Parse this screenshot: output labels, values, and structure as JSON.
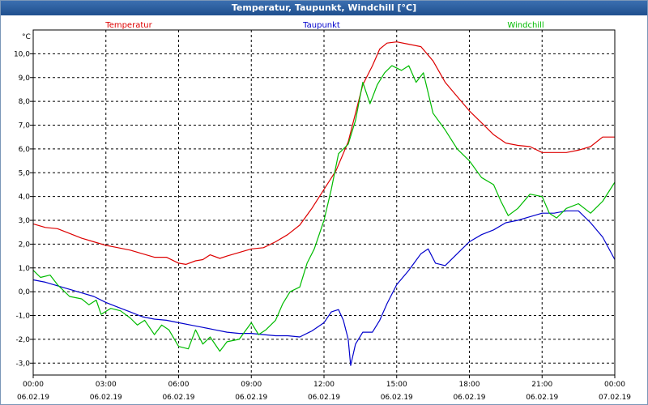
{
  "window": {
    "title": "Temperatur, Taupunkt, Windchill [°C]"
  },
  "chart_data": {
    "type": "line",
    "ylabel": "°C",
    "ylim": [
      -3.5,
      11.0
    ],
    "y_ticks": [
      "10,0",
      "9,0",
      "8,0",
      "7,0",
      "6,0",
      "5,0",
      "4,0",
      "3,0",
      "2,0",
      "1,0",
      "0,0",
      "-1,0",
      "-2,0",
      "-3,0"
    ],
    "y_tick_values": [
      10,
      9,
      8,
      7,
      6,
      5,
      4,
      3,
      2,
      1,
      0,
      -1,
      -2,
      -3
    ],
    "x_range": [
      0,
      24
    ],
    "x_ticks": [
      {
        "time": "00:00",
        "date": "06.02.19",
        "value": 0
      },
      {
        "time": "03:00",
        "date": "06.02.19",
        "value": 3
      },
      {
        "time": "06:00",
        "date": "06.02.19",
        "value": 6
      },
      {
        "time": "09:00",
        "date": "06.02.19",
        "value": 9
      },
      {
        "time": "12:00",
        "date": "06.02.19",
        "value": 12
      },
      {
        "time": "15:00",
        "date": "06.02.19",
        "value": 15
      },
      {
        "time": "18:00",
        "date": "06.02.19",
        "value": 18
      },
      {
        "time": "21:00",
        "date": "06.02.19",
        "value": 21
      },
      {
        "time": "00:00",
        "date": "07.02.19",
        "value": 24
      }
    ],
    "grid": true,
    "legend_placement": "top",
    "series": [
      {
        "name": "Temperatur",
        "color": "#dd0000",
        "points": [
          [
            0,
            2.85
          ],
          [
            0.5,
            2.7
          ],
          [
            1,
            2.65
          ],
          [
            1.5,
            2.45
          ],
          [
            2,
            2.25
          ],
          [
            2.5,
            2.1
          ],
          [
            3,
            1.95
          ],
          [
            3.5,
            1.85
          ],
          [
            4,
            1.75
          ],
          [
            4.5,
            1.6
          ],
          [
            5,
            1.45
          ],
          [
            5.5,
            1.45
          ],
          [
            6,
            1.2
          ],
          [
            6.3,
            1.15
          ],
          [
            6.7,
            1.3
          ],
          [
            7,
            1.35
          ],
          [
            7.3,
            1.55
          ],
          [
            7.7,
            1.4
          ],
          [
            8,
            1.5
          ],
          [
            8.5,
            1.65
          ],
          [
            9,
            1.8
          ],
          [
            9.5,
            1.85
          ],
          [
            10,
            2.1
          ],
          [
            10.5,
            2.4
          ],
          [
            11,
            2.8
          ],
          [
            11.5,
            3.5
          ],
          [
            12,
            4.3
          ],
          [
            12.5,
            5.1
          ],
          [
            13,
            6.3
          ],
          [
            13.3,
            7.5
          ],
          [
            13.6,
            8.7
          ],
          [
            14,
            9.5
          ],
          [
            14.3,
            10.2
          ],
          [
            14.6,
            10.45
          ],
          [
            15,
            10.5
          ],
          [
            15.5,
            10.4
          ],
          [
            16,
            10.3
          ],
          [
            16.5,
            9.7
          ],
          [
            17,
            8.8
          ],
          [
            17.5,
            8.2
          ],
          [
            18,
            7.6
          ],
          [
            18.5,
            7.1
          ],
          [
            19,
            6.6
          ],
          [
            19.5,
            6.25
          ],
          [
            20,
            6.15
          ],
          [
            20.5,
            6.1
          ],
          [
            21,
            5.85
          ],
          [
            21.5,
            5.85
          ],
          [
            22,
            5.85
          ],
          [
            22.5,
            5.95
          ],
          [
            23,
            6.1
          ],
          [
            23.5,
            6.5
          ],
          [
            24,
            6.5
          ]
        ]
      },
      {
        "name": "Taupunkt",
        "color": "#0000cc",
        "points": [
          [
            0,
            0.5
          ],
          [
            0.5,
            0.4
          ],
          [
            1,
            0.25
          ],
          [
            1.5,
            0.1
          ],
          [
            2,
            -0.05
          ],
          [
            2.5,
            -0.2
          ],
          [
            3,
            -0.45
          ],
          [
            3.5,
            -0.65
          ],
          [
            4,
            -0.85
          ],
          [
            4.5,
            -1.05
          ],
          [
            5,
            -1.15
          ],
          [
            5.5,
            -1.2
          ],
          [
            6,
            -1.3
          ],
          [
            6.5,
            -1.4
          ],
          [
            7,
            -1.5
          ],
          [
            7.5,
            -1.6
          ],
          [
            8,
            -1.7
          ],
          [
            8.5,
            -1.75
          ],
          [
            9,
            -1.75
          ],
          [
            9.5,
            -1.8
          ],
          [
            10,
            -1.85
          ],
          [
            10.5,
            -1.85
          ],
          [
            11,
            -1.9
          ],
          [
            11.5,
            -1.65
          ],
          [
            12,
            -1.3
          ],
          [
            12.3,
            -0.85
          ],
          [
            12.6,
            -0.75
          ],
          [
            12.8,
            -1.2
          ],
          [
            13,
            -2.0
          ],
          [
            13.1,
            -3.1
          ],
          [
            13.3,
            -2.2
          ],
          [
            13.6,
            -1.7
          ],
          [
            14,
            -1.7
          ],
          [
            14.3,
            -1.2
          ],
          [
            14.6,
            -0.5
          ],
          [
            15,
            0.3
          ],
          [
            15.5,
            0.9
          ],
          [
            16,
            1.6
          ],
          [
            16.3,
            1.8
          ],
          [
            16.6,
            1.2
          ],
          [
            17,
            1.1
          ],
          [
            17.5,
            1.6
          ],
          [
            18,
            2.1
          ],
          [
            18.5,
            2.4
          ],
          [
            19,
            2.6
          ],
          [
            19.5,
            2.9
          ],
          [
            20,
            3.0
          ],
          [
            20.5,
            3.15
          ],
          [
            21,
            3.3
          ],
          [
            21.5,
            3.3
          ],
          [
            22,
            3.4
          ],
          [
            22.5,
            3.4
          ],
          [
            23,
            2.9
          ],
          [
            23.5,
            2.3
          ],
          [
            24,
            1.35
          ]
        ]
      },
      {
        "name": "Windchill",
        "color": "#00bb00",
        "points": [
          [
            0,
            0.9
          ],
          [
            0.3,
            0.6
          ],
          [
            0.7,
            0.7
          ],
          [
            1,
            0.3
          ],
          [
            1.5,
            -0.2
          ],
          [
            2,
            -0.3
          ],
          [
            2.3,
            -0.55
          ],
          [
            2.6,
            -0.35
          ],
          [
            2.8,
            -0.95
          ],
          [
            3.2,
            -0.7
          ],
          [
            3.6,
            -0.8
          ],
          [
            4,
            -1.1
          ],
          [
            4.3,
            -1.4
          ],
          [
            4.6,
            -1.2
          ],
          [
            5,
            -1.8
          ],
          [
            5.3,
            -1.4
          ],
          [
            5.6,
            -1.6
          ],
          [
            6,
            -2.3
          ],
          [
            6.4,
            -2.4
          ],
          [
            6.7,
            -1.6
          ],
          [
            7,
            -2.2
          ],
          [
            7.3,
            -1.9
          ],
          [
            7.7,
            -2.5
          ],
          [
            8,
            -2.1
          ],
          [
            8.5,
            -2.0
          ],
          [
            9,
            -1.3
          ],
          [
            9.3,
            -1.8
          ],
          [
            9.6,
            -1.6
          ],
          [
            10,
            -1.2
          ],
          [
            10.3,
            -0.5
          ],
          [
            10.6,
            0.0
          ],
          [
            11,
            0.2
          ],
          [
            11.3,
            1.2
          ],
          [
            11.6,
            1.8
          ],
          [
            12,
            3.0
          ],
          [
            12.3,
            4.3
          ],
          [
            12.6,
            5.8
          ],
          [
            13,
            6.2
          ],
          [
            13.3,
            7.2
          ],
          [
            13.6,
            8.8
          ],
          [
            13.9,
            7.9
          ],
          [
            14.2,
            8.7
          ],
          [
            14.5,
            9.2
          ],
          [
            14.8,
            9.5
          ],
          [
            15.2,
            9.3
          ],
          [
            15.5,
            9.5
          ],
          [
            15.8,
            8.8
          ],
          [
            16.1,
            9.2
          ],
          [
            16.5,
            7.5
          ],
          [
            17,
            6.8
          ],
          [
            17.5,
            6.0
          ],
          [
            18,
            5.5
          ],
          [
            18.5,
            4.8
          ],
          [
            19,
            4.5
          ],
          [
            19.3,
            3.8
          ],
          [
            19.6,
            3.2
          ],
          [
            20,
            3.5
          ],
          [
            20.5,
            4.1
          ],
          [
            21,
            4.0
          ],
          [
            21.3,
            3.3
          ],
          [
            21.6,
            3.1
          ],
          [
            22,
            3.5
          ],
          [
            22.5,
            3.7
          ],
          [
            23,
            3.3
          ],
          [
            23.5,
            3.8
          ],
          [
            24,
            4.6
          ]
        ]
      }
    ]
  }
}
